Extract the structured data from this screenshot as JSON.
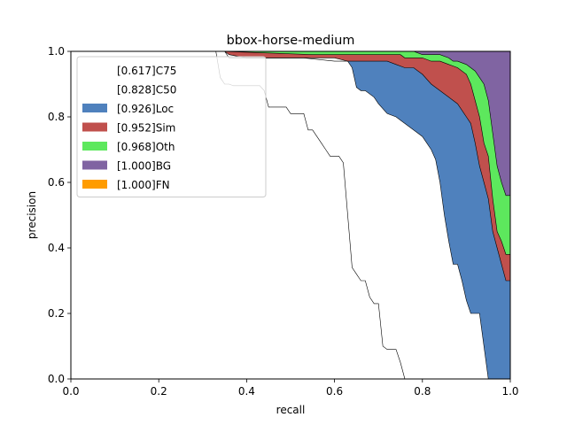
{
  "chart_data": {
    "type": "area",
    "title": "bbox-horse-medium",
    "xlabel": "recall",
    "ylabel": "precision",
    "xlim": [
      0,
      1
    ],
    "ylim": [
      0,
      1
    ],
    "xticks": [
      "0.0",
      "0.2",
      "0.4",
      "0.6",
      "0.8",
      "1.0"
    ],
    "yticks": [
      "0.0",
      "0.2",
      "0.4",
      "0.6",
      "0.8",
      "1.0"
    ],
    "legend_position": "upper-left",
    "series": [
      {
        "name": "[0.617]C75",
        "color": "#ffffff",
        "x": [
          0,
          0.33,
          0.34,
          0.35,
          0.36,
          0.37,
          0.39,
          0.41,
          0.43,
          0.44,
          0.45,
          0.46,
          0.47,
          0.49,
          0.5,
          0.51,
          0.52,
          0.53,
          0.54,
          0.55,
          0.56,
          0.57,
          0.58,
          0.59,
          0.6,
          0.61,
          0.62,
          0.63,
          0.64,
          0.65,
          0.66,
          0.67,
          0.68,
          0.69,
          0.7,
          0.71,
          0.72,
          0.73,
          0.74,
          0.75,
          0.76
        ],
        "y": [
          1.0,
          1.0,
          0.92,
          0.9,
          0.9,
          0.895,
          0.895,
          0.895,
          0.895,
          0.88,
          0.83,
          0.83,
          0.83,
          0.83,
          0.81,
          0.81,
          0.81,
          0.81,
          0.76,
          0.76,
          0.74,
          0.72,
          0.7,
          0.68,
          0.68,
          0.68,
          0.66,
          0.5,
          0.34,
          0.32,
          0.3,
          0.3,
          0.25,
          0.23,
          0.23,
          0.1,
          0.09,
          0.09,
          0.09,
          0.05,
          0.0
        ]
      },
      {
        "name": "[0.828]C50",
        "color": "#ffffff",
        "x": [
          0,
          0.35,
          0.36,
          0.4,
          0.5,
          0.6,
          0.63,
          0.64,
          0.65,
          0.66,
          0.67,
          0.69,
          0.7,
          0.72,
          0.74,
          0.75,
          0.77,
          0.79,
          0.8,
          0.81,
          0.82,
          0.83,
          0.84,
          0.85,
          0.86,
          0.87,
          0.88,
          0.89,
          0.9,
          0.91,
          0.92,
          0.93,
          0.94,
          0.95
        ],
        "y": [
          1.0,
          1.0,
          0.99,
          0.98,
          0.98,
          0.98,
          0.97,
          0.95,
          0.89,
          0.88,
          0.88,
          0.86,
          0.84,
          0.81,
          0.8,
          0.79,
          0.77,
          0.75,
          0.74,
          0.72,
          0.7,
          0.67,
          0.6,
          0.5,
          0.42,
          0.35,
          0.35,
          0.3,
          0.24,
          0.2,
          0.2,
          0.2,
          0.1,
          0.0
        ]
      },
      {
        "name": "[0.926]Loc",
        "color": "#4f81bd",
        "x": [
          0,
          0.35,
          0.36,
          0.5,
          0.53,
          0.6,
          0.66,
          0.7,
          0.72,
          0.74,
          0.76,
          0.78,
          0.79,
          0.8,
          0.82,
          0.84,
          0.86,
          0.88,
          0.9,
          0.91,
          0.92,
          0.93,
          0.94,
          0.95,
          0.96,
          0.97,
          0.98,
          0.99,
          1.0
        ],
        "y": [
          1.0,
          1.0,
          0.98,
          0.98,
          0.98,
          0.97,
          0.97,
          0.97,
          0.97,
          0.96,
          0.95,
          0.95,
          0.94,
          0.93,
          0.9,
          0.88,
          0.86,
          0.84,
          0.8,
          0.78,
          0.72,
          0.65,
          0.6,
          0.55,
          0.45,
          0.4,
          0.35,
          0.3,
          0.3
        ]
      },
      {
        "name": "[0.952]Sim",
        "color": "#c0504d",
        "x": [
          0,
          0.35,
          0.55,
          0.6,
          0.7,
          0.75,
          0.76,
          0.78,
          0.8,
          0.82,
          0.84,
          0.86,
          0.88,
          0.9,
          0.91,
          0.92,
          0.93,
          0.94,
          0.95,
          0.96,
          0.97,
          0.98,
          0.99,
          1.0
        ],
        "y": [
          1.0,
          1.0,
          0.99,
          0.99,
          0.99,
          0.99,
          0.98,
          0.98,
          0.98,
          0.97,
          0.97,
          0.96,
          0.95,
          0.93,
          0.9,
          0.85,
          0.8,
          0.72,
          0.68,
          0.55,
          0.45,
          0.42,
          0.38,
          0.38
        ]
      },
      {
        "name": "[0.968]Oth",
        "color": "#5de85d",
        "x": [
          0,
          0.35,
          0.6,
          0.75,
          0.78,
          0.8,
          0.82,
          0.84,
          0.86,
          0.87,
          0.88,
          0.9,
          0.91,
          0.92,
          0.93,
          0.94,
          0.95,
          0.96,
          0.97,
          0.98,
          0.99,
          1.0
        ],
        "y": [
          1.0,
          1.0,
          1.0,
          1.0,
          1.0,
          0.99,
          0.99,
          0.99,
          0.98,
          0.97,
          0.97,
          0.96,
          0.95,
          0.94,
          0.92,
          0.9,
          0.85,
          0.75,
          0.65,
          0.6,
          0.56,
          0.56
        ]
      },
      {
        "name": "[1.000]BG",
        "color": "#8064a2",
        "x": [
          0,
          1.0
        ],
        "y": [
          1.0,
          1.0
        ]
      },
      {
        "name": "[1.000]FN",
        "color": "#ff9c00",
        "x": [
          0,
          1.0
        ],
        "y": [
          1.0,
          1.0
        ]
      }
    ]
  }
}
